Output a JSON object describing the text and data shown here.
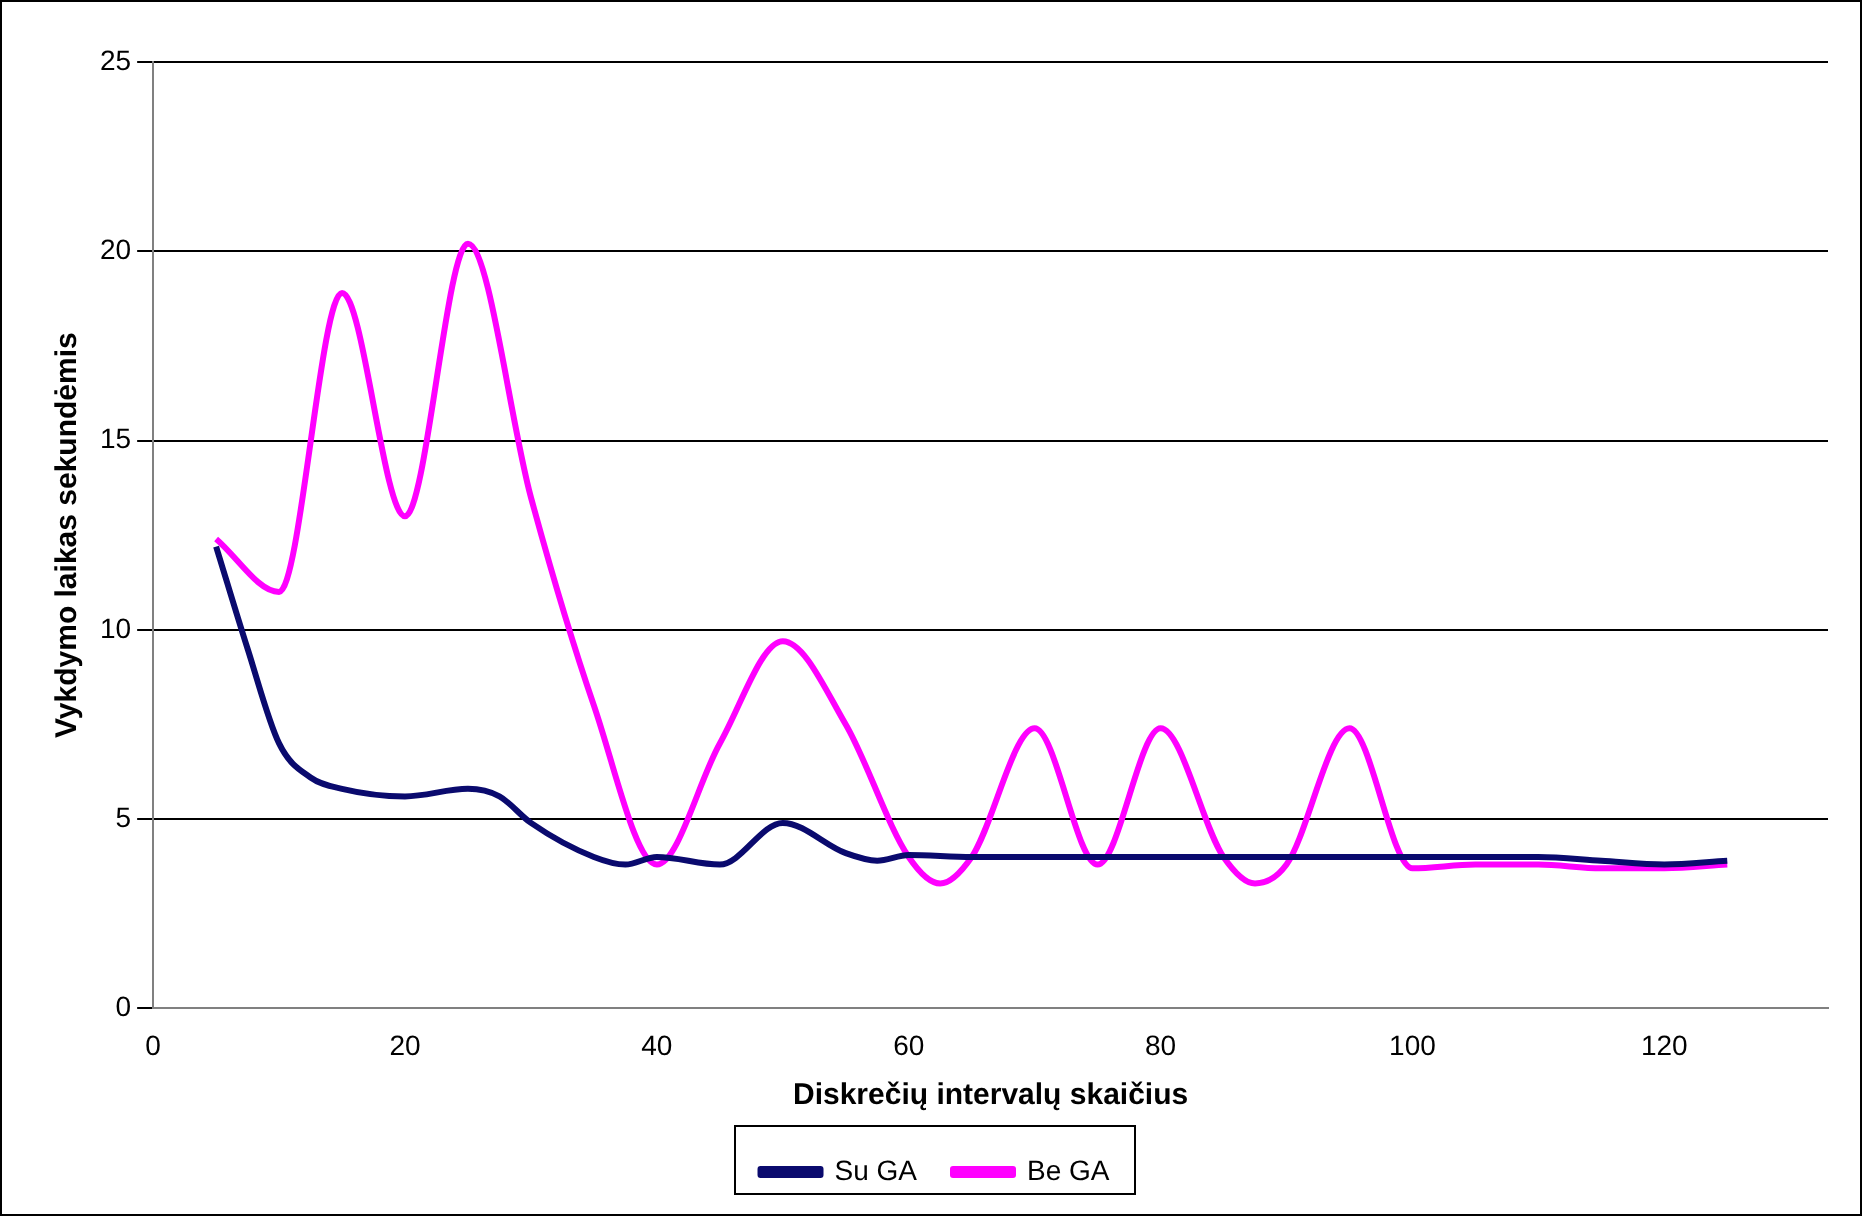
{
  "chart_data": {
    "type": "line",
    "xlabel": "Diskrečių intervalų skaičius",
    "ylabel": "Vykdymo laikas sekundėmis",
    "xlim": [
      0,
      133
    ],
    "xticks": [
      0,
      20,
      40,
      60,
      80,
      100,
      120
    ],
    "ylim": [
      0,
      25
    ],
    "yticks": [
      0,
      5,
      10,
      15,
      20,
      25
    ],
    "grid": "y",
    "legend": "bottom",
    "marker": "none",
    "line_style": "solid",
    "series": [
      {
        "name": "Su GA",
        "color": "#0a0a6e",
        "x": [
          5,
          7.5,
          10,
          12.5,
          15,
          20,
          25,
          27.5,
          30,
          35,
          37.5,
          40,
          45,
          50,
          55,
          57.5,
          60,
          65,
          70,
          80,
          90,
          100,
          110,
          115,
          120,
          125
        ],
        "values": [
          12.2,
          9.5,
          7,
          6.1,
          5.8,
          5.6,
          5.8,
          5.6,
          4.9,
          4,
          3.8,
          4,
          3.8,
          4.9,
          4.1,
          3.9,
          4.05,
          4,
          4,
          4,
          4,
          4,
          4,
          3.9,
          3.8,
          3.9
        ]
      },
      {
        "name": "Be GA",
        "color": "#ff00ff",
        "x": [
          5,
          10,
          15,
          20,
          25,
          30,
          35,
          40,
          45,
          50,
          55,
          60,
          62.5,
          65,
          70,
          75,
          80,
          85,
          87.5,
          90,
          95,
          100,
          105,
          110,
          115,
          120,
          125
        ],
        "values": [
          12.4,
          11,
          18.9,
          13,
          20.2,
          13.5,
          8,
          3.8,
          7,
          9.7,
          7.5,
          4,
          3.3,
          4,
          7.4,
          3.8,
          7.4,
          4,
          3.3,
          3.8,
          7.4,
          3.7,
          3.8,
          3.8,
          3.7,
          3.7,
          3.8
        ]
      }
    ]
  }
}
